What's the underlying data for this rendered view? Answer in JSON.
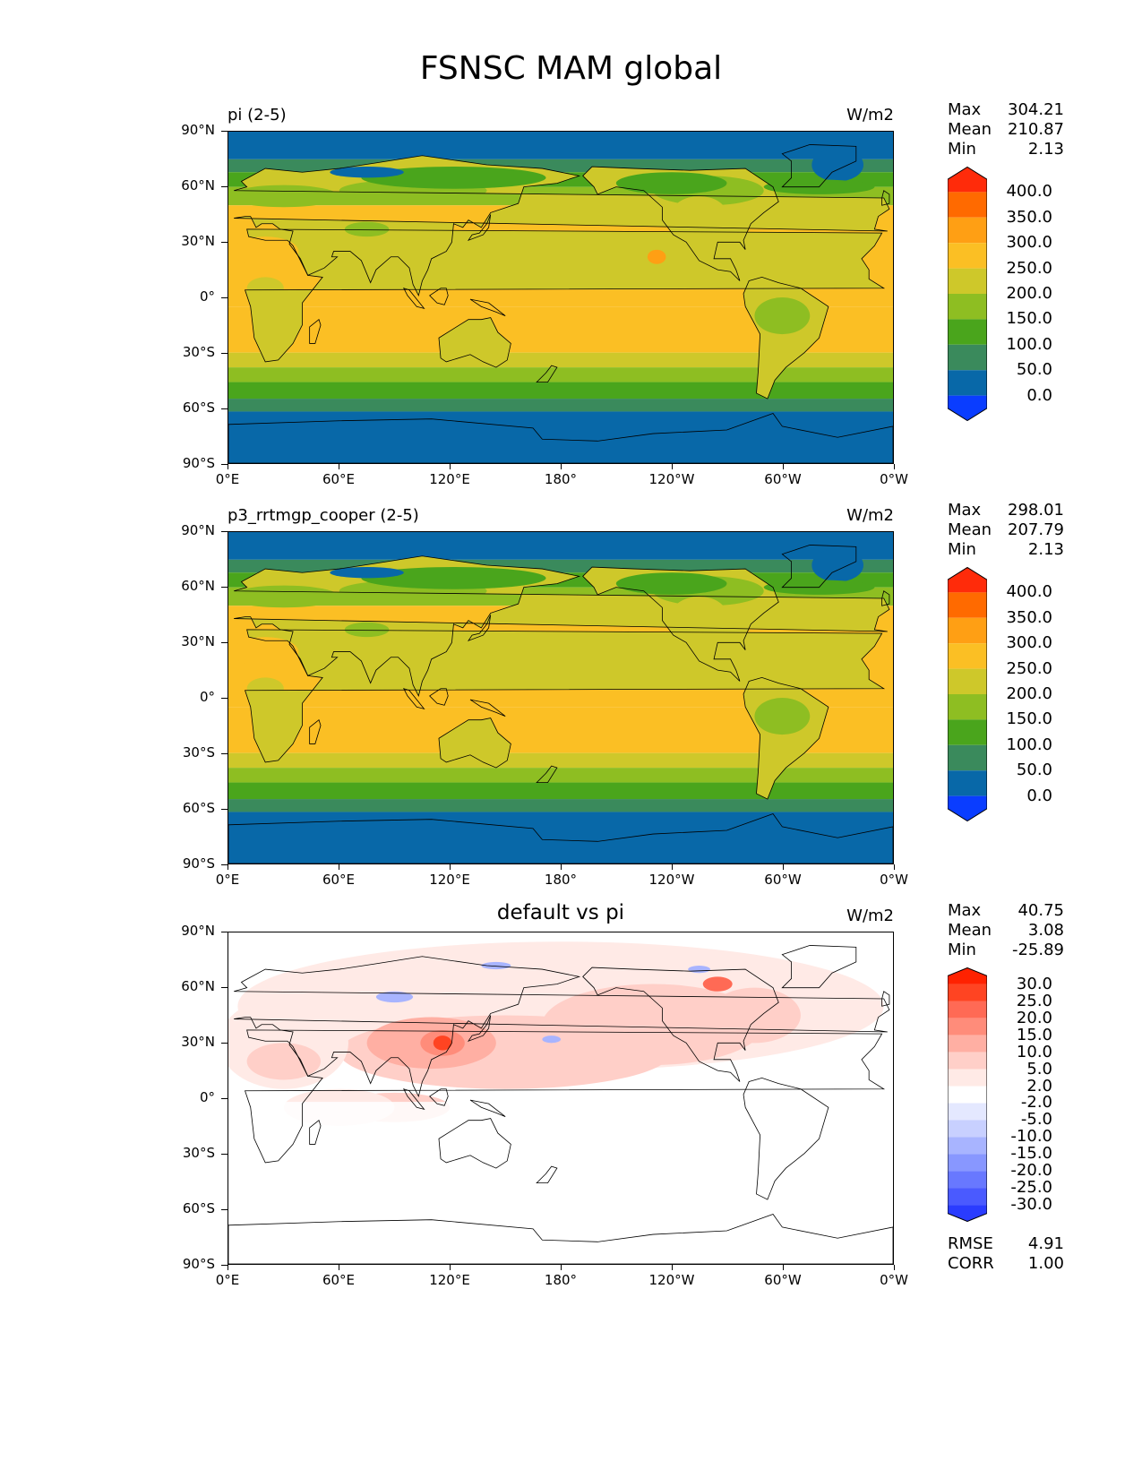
{
  "title": "FSNSC MAM global",
  "panels": [
    {
      "label": "pi (2-5)",
      "label_style": "left",
      "units": "W/m2",
      "stats": {
        "max_label": "Max",
        "max": "304.21",
        "mean_label": "Mean",
        "mean": "210.87",
        "min_label": "Min",
        "min": "2.13"
      },
      "field": "abs"
    },
    {
      "label": "p3_rrtmgp_cooper (2-5)",
      "label_style": "left",
      "units": "W/m2",
      "stats": {
        "max_label": "Max",
        "max": "298.01",
        "mean_label": "Mean",
        "mean": "207.79",
        "min_label": "Min",
        "min": "2.13"
      },
      "field": "abs"
    },
    {
      "label": "default vs pi",
      "label_style": "center",
      "units": "W/m2",
      "stats": {
        "max_label": "Max",
        "max": "40.75",
        "mean_label": "Mean",
        "mean": "3.08",
        "min_label": "Min",
        "min": "-25.89"
      },
      "field": "diff",
      "rmse_label": "RMSE",
      "rmse": "4.91",
      "corr_label": "CORR",
      "corr": "1.00"
    }
  ],
  "axes": {
    "lat_ticks": [
      "90°N",
      "60°N",
      "30°N",
      "0°",
      "30°S",
      "60°S",
      "90°S"
    ],
    "lon_ticks": [
      "0°E",
      "60°E",
      "120°E",
      "180°",
      "120°W",
      "60°W",
      "0°W"
    ]
  },
  "colorbars": {
    "abs": {
      "labels": [
        "400.0",
        "350.0",
        "300.0",
        "250.0",
        "200.0",
        "150.0",
        "100.0",
        "50.0",
        "0.0"
      ],
      "colors": [
        "#ff2b0a",
        "#ff6a00",
        "#ff9f14",
        "#fbbf24",
        "#cec82a",
        "#8ebe22",
        "#4aa51c",
        "#3a8a5c",
        "#0868a8",
        "#0a3dff"
      ]
    },
    "diff": {
      "labels": [
        "30.0",
        "25.0",
        "20.0",
        "15.0",
        "10.0",
        "5.0",
        "2.0",
        "-2.0",
        "-5.0",
        "-10.0",
        "-15.0",
        "-20.0",
        "-25.0",
        "-30.0"
      ],
      "colors": [
        "#ff2200",
        "#ff4422",
        "#ff6a55",
        "#ff8c7a",
        "#ffafa3",
        "#ffcfc8",
        "#ffeae6",
        "#ffffff",
        "#e4e8ff",
        "#c8d0ff",
        "#a8b4ff",
        "#8897ff",
        "#6878ff",
        "#4a5aff",
        "#2a3cff"
      ]
    }
  },
  "chart_data": [
    {
      "type": "heatmap",
      "title": "pi (2-5)",
      "units": "W/m2",
      "xlabel": "",
      "ylabel": "",
      "xlim": [
        0,
        360
      ],
      "ylim": [
        -90,
        90
      ],
      "levels": [
        0,
        50,
        100,
        150,
        200,
        250,
        300,
        350,
        400
      ],
      "zonal_band_values": [
        {
          "lat": [
            75,
            90
          ],
          "value": 75
        },
        {
          "lat": [
            65,
            75
          ],
          "value": 125
        },
        {
          "lat": [
            55,
            65
          ],
          "value": 175
        },
        {
          "lat": [
            -5,
            55
          ],
          "value": 225
        },
        {
          "lat": [
            -30,
            -5
          ],
          "value": 275
        },
        {
          "lat": [
            -40,
            -30
          ],
          "value": 225
        },
        {
          "lat": [
            -50,
            -40
          ],
          "value": 175
        },
        {
          "lat": [
            -57,
            -50
          ],
          "value": 125
        },
        {
          "lat": [
            -67,
            -57
          ],
          "value": 75
        },
        {
          "lat": [
            -90,
            -67
          ],
          "value": 25
        }
      ],
      "stats": {
        "max": 304.21,
        "mean": 210.87,
        "min": 2.13
      }
    },
    {
      "type": "heatmap",
      "title": "p3_rrtmgp_cooper (2-5)",
      "units": "W/m2",
      "xlabel": "",
      "ylabel": "",
      "xlim": [
        0,
        360
      ],
      "ylim": [
        -90,
        90
      ],
      "levels": [
        0,
        50,
        100,
        150,
        200,
        250,
        300,
        350,
        400
      ],
      "stats": {
        "max": 298.01,
        "mean": 207.79,
        "min": 2.13
      }
    },
    {
      "type": "heatmap",
      "title": "default vs pi",
      "units": "W/m2",
      "xlabel": "",
      "ylabel": "",
      "xlim": [
        0,
        360
      ],
      "ylim": [
        -90,
        90
      ],
      "levels": [
        -30,
        -25,
        -20,
        -15,
        -10,
        -5,
        -2,
        2,
        5,
        10,
        15,
        20,
        25,
        30
      ],
      "stats": {
        "max": 40.75,
        "mean": 3.08,
        "min": -25.89,
        "rmse": 4.91,
        "corr": 1.0
      }
    }
  ]
}
